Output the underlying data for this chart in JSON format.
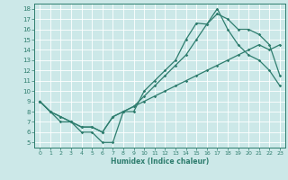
{
  "xlabel": "Humidex (Indice chaleur)",
  "bg_color": "#cce8e8",
  "line_color": "#2e7d6e",
  "grid_color": "#ffffff",
  "xlim": [
    -0.5,
    23.5
  ],
  "ylim": [
    4.5,
    18.5
  ],
  "xticks": [
    0,
    1,
    2,
    3,
    4,
    5,
    6,
    7,
    8,
    9,
    10,
    11,
    12,
    13,
    14,
    15,
    16,
    17,
    18,
    19,
    20,
    21,
    22,
    23
  ],
  "yticks": [
    5,
    6,
    7,
    8,
    9,
    10,
    11,
    12,
    13,
    14,
    15,
    16,
    17,
    18
  ],
  "line1_x": [
    0,
    1,
    2,
    3,
    4,
    5,
    6,
    7,
    8,
    9,
    10,
    11,
    12,
    13,
    14,
    15,
    16,
    17,
    18,
    19,
    20,
    21,
    22,
    23
  ],
  "line1_y": [
    9,
    8,
    7,
    7,
    6,
    6,
    5,
    5,
    8,
    8,
    10,
    11,
    12,
    13,
    15,
    16.6,
    16.5,
    18,
    16,
    14.5,
    13.5,
    13,
    12,
    10.5
  ],
  "line2_x": [
    0,
    1,
    2,
    3,
    4,
    5,
    6,
    7,
    8,
    9,
    10,
    11,
    12,
    13,
    14,
    15,
    16,
    17,
    18,
    19,
    20,
    21,
    22,
    23
  ],
  "line2_y": [
    9,
    8,
    7.5,
    7,
    6.5,
    6.5,
    6,
    7.5,
    8,
    8.5,
    9.5,
    10.5,
    11.5,
    12.5,
    13.5,
    15,
    16.5,
    17.5,
    17,
    16,
    16,
    15.5,
    14.5,
    11.5
  ],
  "line3_x": [
    0,
    1,
    2,
    3,
    4,
    5,
    6,
    7,
    8,
    9,
    10,
    11,
    12,
    13,
    14,
    15,
    16,
    17,
    18,
    19,
    20,
    21,
    22,
    23
  ],
  "line3_y": [
    9,
    8,
    7.5,
    7,
    6.5,
    6.5,
    6,
    7.5,
    8,
    8.5,
    9,
    9.5,
    10,
    10.5,
    11,
    11.5,
    12,
    12.5,
    13,
    13.5,
    14,
    14.5,
    14,
    14.5
  ]
}
